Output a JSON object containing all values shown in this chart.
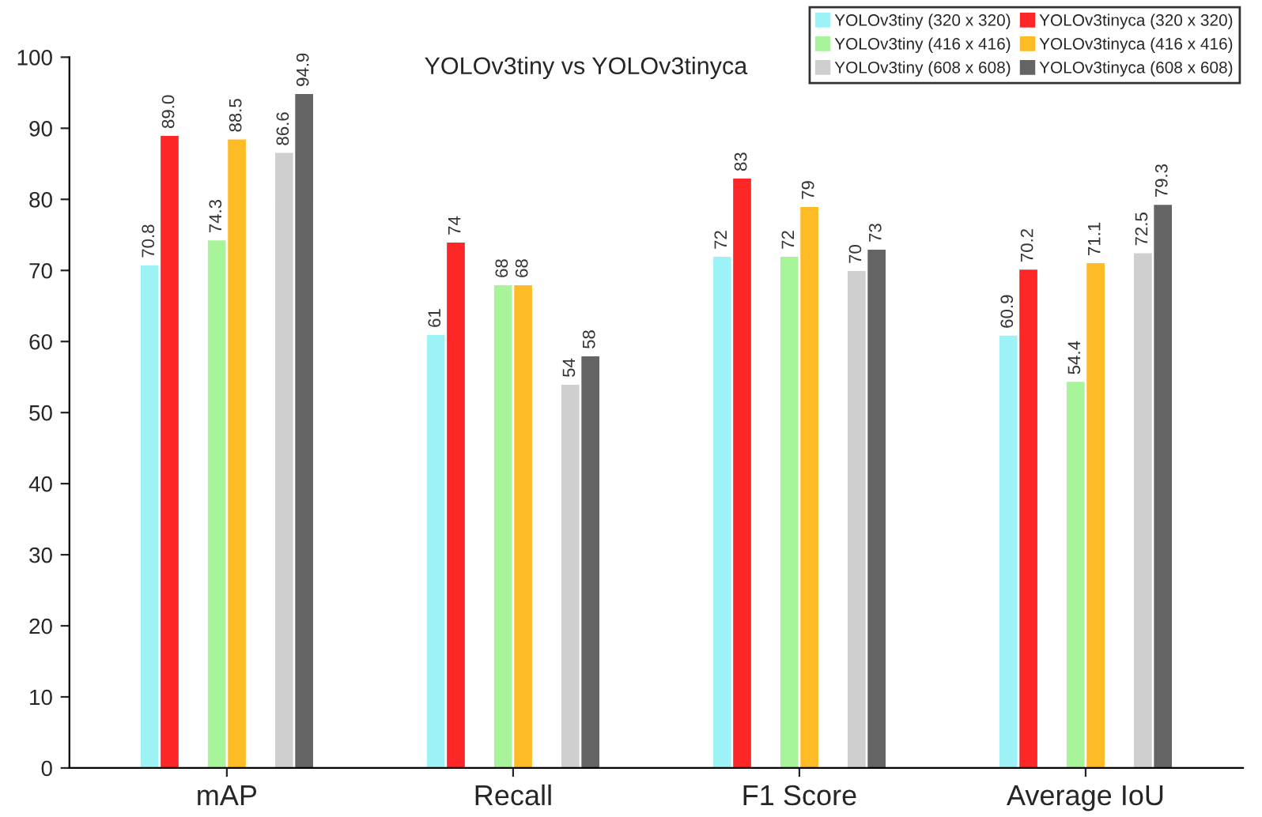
{
  "chart_data": {
    "type": "bar",
    "title": "YOLOv3tiny vs YOLOv3tinyca",
    "categories": [
      "mAP",
      "Recall",
      "F1 Score",
      "Average IoU"
    ],
    "series": [
      {
        "name": "YOLOv3tiny (320 x 320)",
        "color": "#9cf2f5",
        "values": [
          70.8,
          61,
          72,
          60.9
        ],
        "value_labels": [
          "70.8",
          "61",
          "72",
          "60.9"
        ]
      },
      {
        "name": "YOLOv3tinyca (320 x 320)",
        "color": "#fe2727",
        "values": [
          89.0,
          74,
          83,
          70.2
        ],
        "value_labels": [
          "89.0",
          "74",
          "83",
          "70.2"
        ]
      },
      {
        "name": "YOLOv3tiny (416 x 416)",
        "color": "#a8f49b",
        "values": [
          74.3,
          68,
          72,
          54.4
        ],
        "value_labels": [
          "74.3",
          "68",
          "72",
          "54.4"
        ]
      },
      {
        "name": "YOLOv3tinyca (416 x 416)",
        "color": "#fdbb26",
        "values": [
          88.5,
          68,
          79,
          71.1
        ],
        "value_labels": [
          "88.5",
          "68",
          "79",
          "71.1"
        ]
      },
      {
        "name": "YOLOv3tiny (608 x 608)",
        "color": "#cfcfcf",
        "values": [
          86.6,
          54,
          70,
          72.5
        ],
        "value_labels": [
          "86.6",
          "54",
          "70",
          "72.5"
        ]
      },
      {
        "name": "YOLOv3tinyca (608 x 608)",
        "color": "#646464",
        "values": [
          94.9,
          58,
          73,
          79.3
        ],
        "value_labels": [
          "94.9",
          "58",
          "73",
          "79.3"
        ]
      }
    ],
    "ylim": [
      0,
      100
    ],
    "yticks": [
      0,
      10,
      20,
      30,
      40,
      50,
      60,
      70,
      80,
      90,
      100
    ],
    "grid": false,
    "legend": "top right"
  }
}
